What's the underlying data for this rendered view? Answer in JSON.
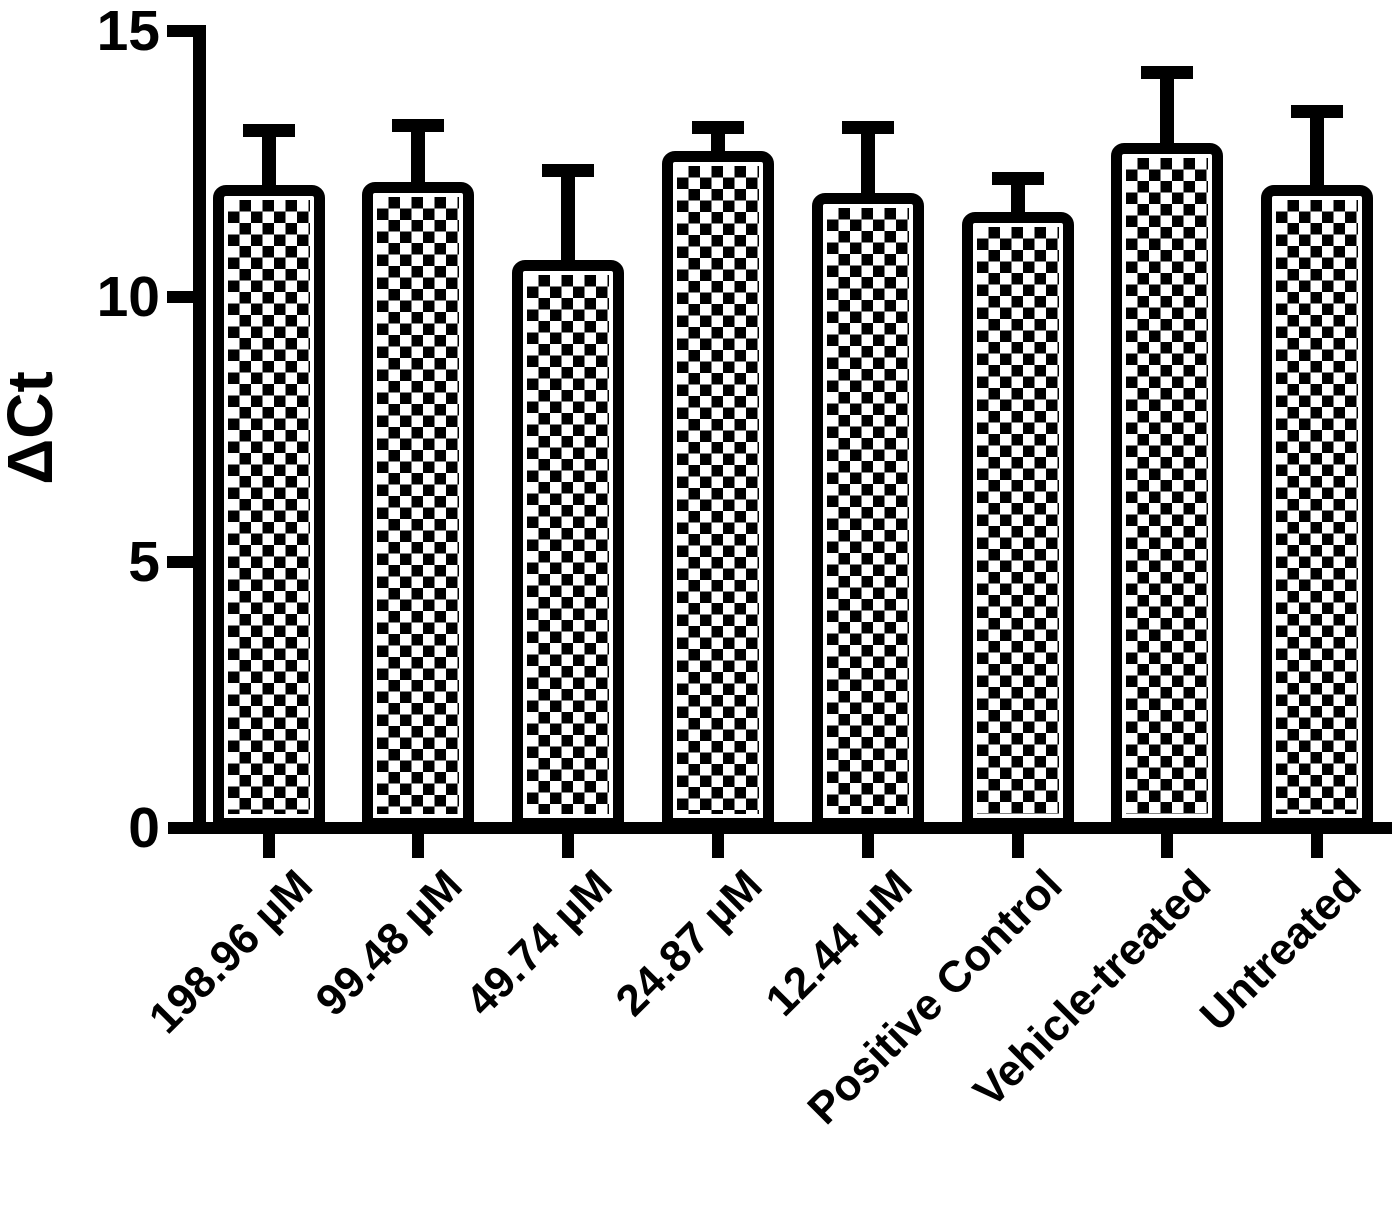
{
  "figure": {
    "background_color": "#ffffff",
    "ink_color": "#000000",
    "title": ""
  },
  "chart_data": {
    "type": "bar",
    "title": "",
    "xlabel": "",
    "ylabel": "ΔCt",
    "ylim": [
      0,
      15
    ],
    "yticks": [
      0,
      5,
      10,
      15
    ],
    "grid": false,
    "legend_position": "none",
    "bar_style": "black-and-white checkerboard pattern fill with thick black outline",
    "error_bars": "plus-direction SD caps",
    "categories": [
      "198.96 µM",
      "99.48 µM",
      "49.74 µM",
      "24.87 µM",
      "12.44 µM",
      "Positive Control",
      "Vehicle-treated",
      "Untreated"
    ],
    "series": [
      {
        "name": "ΔCt",
        "values": [
          12.1,
          12.15,
          10.7,
          12.75,
          11.95,
          11.6,
          12.9,
          12.1
        ],
        "errors_plus": [
          1.15,
          1.2,
          1.8,
          0.55,
          1.35,
          0.75,
          1.45,
          1.5
        ]
      }
    ]
  }
}
